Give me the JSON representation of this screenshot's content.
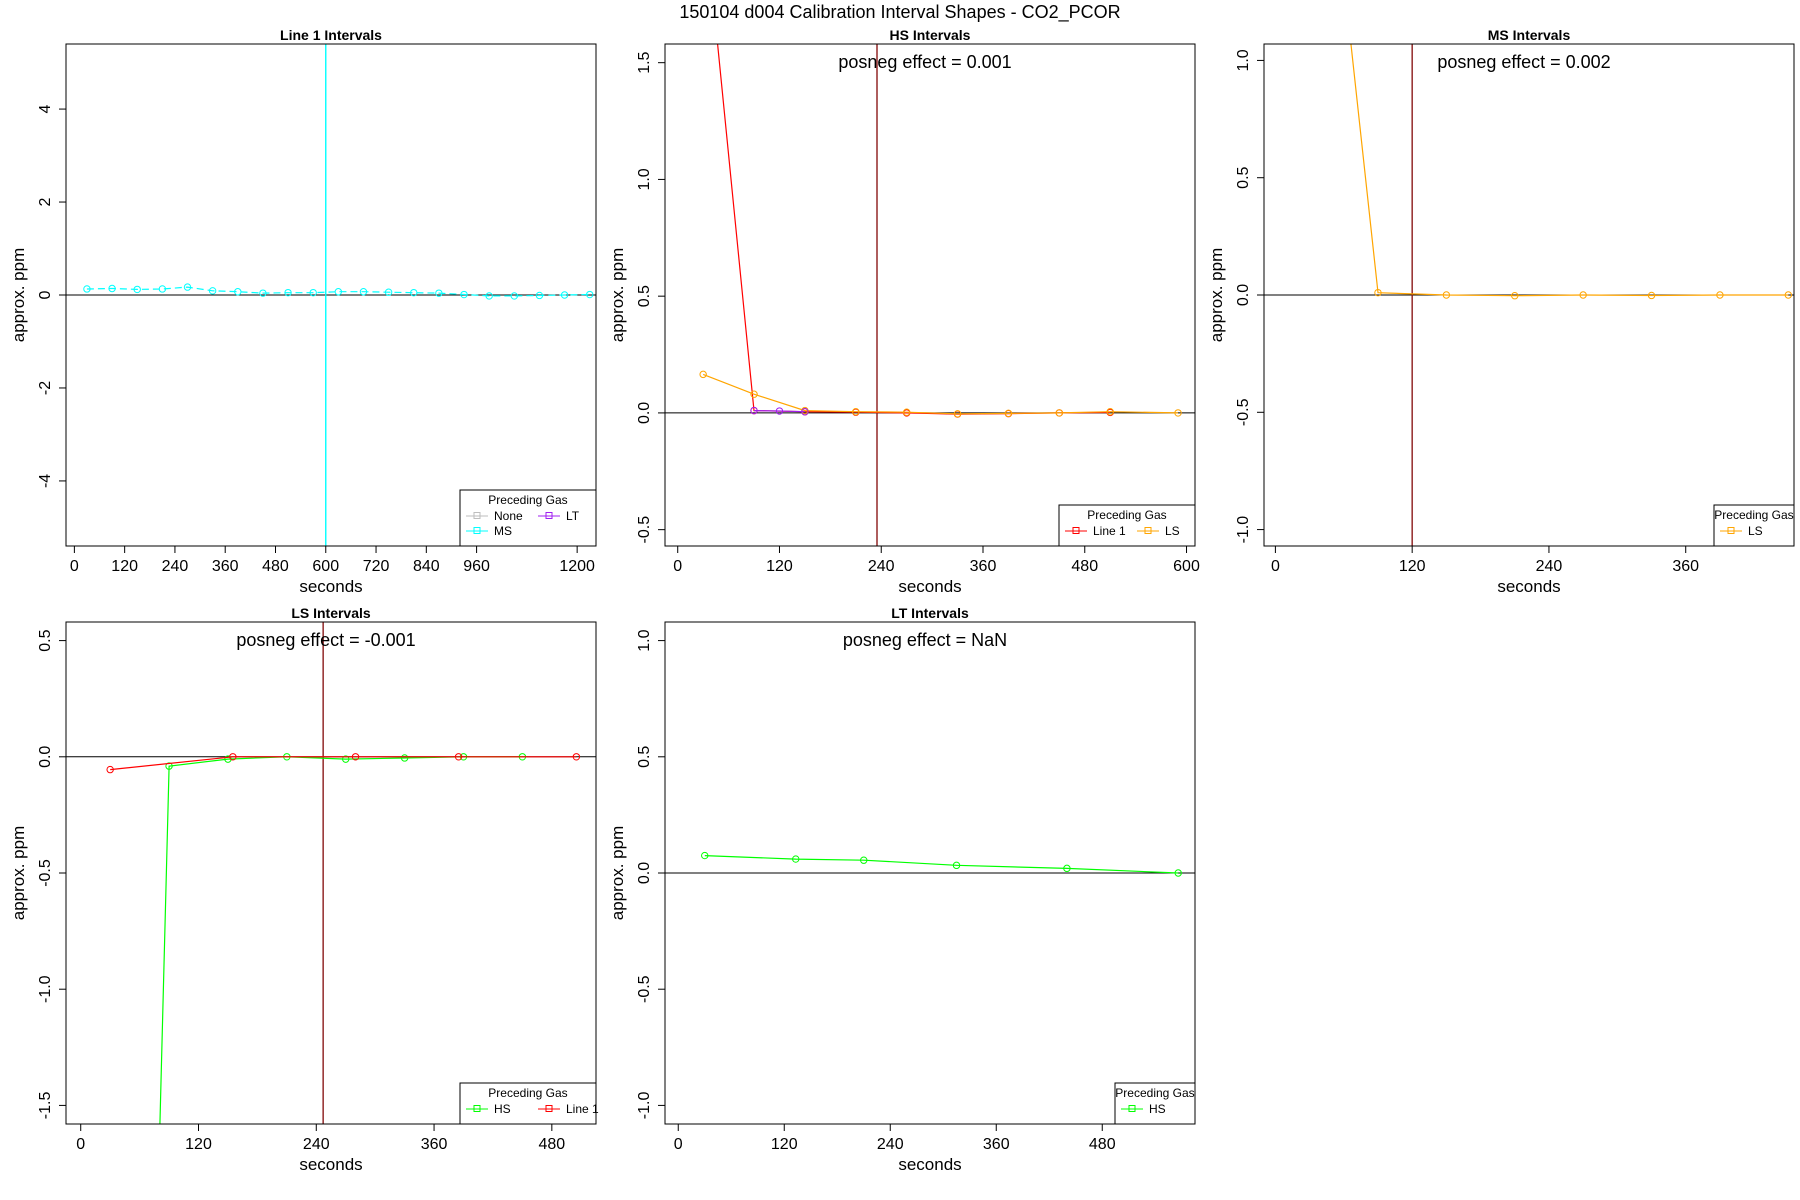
{
  "figure": {
    "title": "150104  d004   Calibration Interval Shapes - CO2_PCOR"
  },
  "chart_data": [
    {
      "type": "line",
      "title": "Line 1 Intervals",
      "xlabel": "seconds",
      "ylabel": "approx. ppm",
      "xlim": [
        -20,
        1245
      ],
      "ylim": [
        -5.4,
        5.4
      ],
      "xticks": [
        0,
        120,
        240,
        360,
        480,
        600,
        720,
        840,
        960,
        1200
      ],
      "xtick_labels": [
        "0",
        "120",
        "240",
        "360",
        "480",
        "600",
        "720",
        "840",
        "960",
        "1200"
      ],
      "yticks": [
        -4,
        -2,
        0,
        2,
        4
      ],
      "ytick_labels": [
        "-4",
        "-2",
        "0",
        "2",
        "4"
      ],
      "vline": 600,
      "vline_color": "#00ffff",
      "annotation": "",
      "legend": {
        "title": "Preceding Gas",
        "position": "bottom-right",
        "entries": [
          {
            "label": "None",
            "color": "#bebebe"
          },
          {
            "label": "LT",
            "color": "#a020f0"
          },
          {
            "label": "MS",
            "color": "#00ffff"
          }
        ]
      },
      "series": [
        {
          "color": "#00ffff",
          "dashed": true,
          "x": [
            30,
            90,
            150,
            210,
            270,
            330,
            390,
            450,
            510,
            570,
            630,
            690,
            750,
            810,
            870,
            930,
            990,
            1050,
            1110,
            1170,
            1230
          ],
          "y": [
            0.13,
            0.14,
            0.12,
            0.13,
            0.17,
            0.09,
            0.07,
            0.04,
            0.05,
            0.05,
            0.07,
            0.07,
            0.06,
            0.05,
            0.04,
            0.01,
            -0.02,
            -0.02,
            -0.01,
            0.0,
            0.01
          ]
        }
      ]
    },
    {
      "type": "line",
      "title": "HS Intervals",
      "xlabel": "seconds",
      "ylabel": "approx. ppm",
      "xlim": [
        -15,
        610
      ],
      "ylim": [
        -0.57,
        1.58
      ],
      "xticks": [
        0,
        120,
        240,
        360,
        480,
        600
      ],
      "xtick_labels": [
        "0",
        "120",
        "240",
        "360",
        "480",
        "600"
      ],
      "yticks": [
        -0.5,
        0.0,
        0.5,
        1.0,
        1.5
      ],
      "ytick_labels": [
        "-0.5",
        "0.0",
        "0.5",
        "1.0",
        "1.5"
      ],
      "vline": 235,
      "vline_color": "#8b1a1a",
      "annotation": "posneg effect = 0.001",
      "legend": {
        "title": "Preceding Gas",
        "position": "bottom-right",
        "entries": [
          {
            "label": "Line 1",
            "color": "#ff0000"
          },
          {
            "label": "LS",
            "color": "#ffa500"
          }
        ]
      },
      "series": [
        {
          "color": "#ff0000",
          "dashed": false,
          "x": [
            30,
            90,
            150,
            210,
            270,
            330,
            390,
            450,
            510
          ],
          "y": [
            2.2,
            0.01,
            0.005,
            0.003,
            0.0,
            -0.005,
            -0.003,
            0.0,
            0.002
          ]
        },
        {
          "color": "#ffa500",
          "dashed": false,
          "x": [
            30,
            90,
            150,
            210,
            270,
            330,
            390,
            450,
            510,
            590
          ],
          "y": [
            0.165,
            0.08,
            0.01,
            0.005,
            0.003,
            -0.004,
            -0.002,
            0.0,
            0.005,
            0.0
          ]
        },
        {
          "color": "#a020f0",
          "dashed": false,
          "x": [
            90,
            120,
            150
          ],
          "y": [
            0.01,
            0.008,
            0.005
          ]
        }
      ]
    },
    {
      "type": "line",
      "title": "MS Intervals",
      "xlabel": "seconds",
      "ylabel": "approx. ppm",
      "xlim": [
        -10,
        455
      ],
      "ylim": [
        -1.07,
        1.07
      ],
      "xticks": [
        0,
        120,
        240,
        360
      ],
      "xtick_labels": [
        "0",
        "120",
        "240",
        "360"
      ],
      "yticks": [
        -1.0,
        -0.5,
        0.0,
        0.5,
        1.0
      ],
      "ytick_labels": [
        "-1.0",
        "-0.5",
        "0.0",
        "0.5",
        "1.0"
      ],
      "vline": 120,
      "vline_color": "#8b1a1a",
      "annotation": "posneg effect = 0.002",
      "legend": {
        "title": "Preceding Gas",
        "position": "bottom-right",
        "entries": [
          {
            "label": "LS",
            "color": "#ffa500"
          }
        ]
      },
      "series": [
        {
          "color": "#ffa500",
          "dashed": false,
          "x": [
            60,
            90,
            150,
            210,
            270,
            330,
            390,
            450
          ],
          "y": [
            1.35,
            0.01,
            0.0,
            -0.003,
            0.0,
            -0.002,
            0.0,
            0.0
          ]
        }
      ]
    },
    {
      "type": "line",
      "title": "LS Intervals",
      "xlabel": "seconds",
      "ylabel": "approx. ppm",
      "xlim": [
        -15,
        525
      ],
      "ylim": [
        -1.58,
        0.58
      ],
      "xticks": [
        0,
        120,
        240,
        360,
        480
      ],
      "xtick_labels": [
        "0",
        "120",
        "240",
        "360",
        "480"
      ],
      "yticks": [
        -1.5,
        -1.0,
        -0.5,
        0.0,
        0.5
      ],
      "ytick_labels": [
        "-1.5",
        "-1.0",
        "-0.5",
        "0.0",
        "0.5"
      ],
      "vline": 247,
      "vline_color": "#8b1a1a",
      "annotation": "posneg effect = -0.001",
      "legend": {
        "title": "Preceding Gas",
        "position": "bottom-right",
        "entries": [
          {
            "label": "HS",
            "color": "#00ff00"
          },
          {
            "label": "Line 1",
            "color": "#ff0000"
          }
        ]
      },
      "series": [
        {
          "color": "#00ff00",
          "dashed": false,
          "x": [
            80,
            90,
            150,
            210,
            270,
            330,
            390,
            450
          ],
          "y": [
            -1.7,
            -0.04,
            -0.01,
            0.0,
            -0.01,
            -0.005,
            0.0,
            0.0
          ]
        },
        {
          "color": "#ff0000",
          "dashed": false,
          "x": [
            30,
            155,
            280,
            385,
            505
          ],
          "y": [
            -0.055,
            0.0,
            0.0,
            0.0,
            0.0
          ]
        }
      ]
    },
    {
      "type": "line",
      "title": "LT Intervals",
      "xlabel": "seconds",
      "ylabel": "approx. ppm",
      "xlim": [
        -15,
        585
      ],
      "ylim": [
        -1.08,
        1.08
      ],
      "xticks": [
        0,
        120,
        240,
        360,
        480
      ],
      "xtick_labels": [
        "0",
        "120",
        "240",
        "360",
        "480"
      ],
      "yticks": [
        -1.0,
        -0.5,
        0.0,
        0.5,
        1.0
      ],
      "ytick_labels": [
        "-1.0",
        "-0.5",
        "0.0",
        "0.5",
        "1.0"
      ],
      "vline": null,
      "vline_color": "#8b1a1a",
      "annotation": "posneg effect = NaN",
      "legend": {
        "title": "Preceding Gas",
        "position": "bottom-right",
        "entries": [
          {
            "label": "HS",
            "color": "#00ff00"
          }
        ]
      },
      "series": [
        {
          "color": "#00ff00",
          "dashed": false,
          "x": [
            30,
            133,
            210,
            315,
            440,
            566
          ],
          "y": [
            0.075,
            0.06,
            0.055,
            0.033,
            0.02,
            0.0
          ]
        }
      ]
    }
  ]
}
